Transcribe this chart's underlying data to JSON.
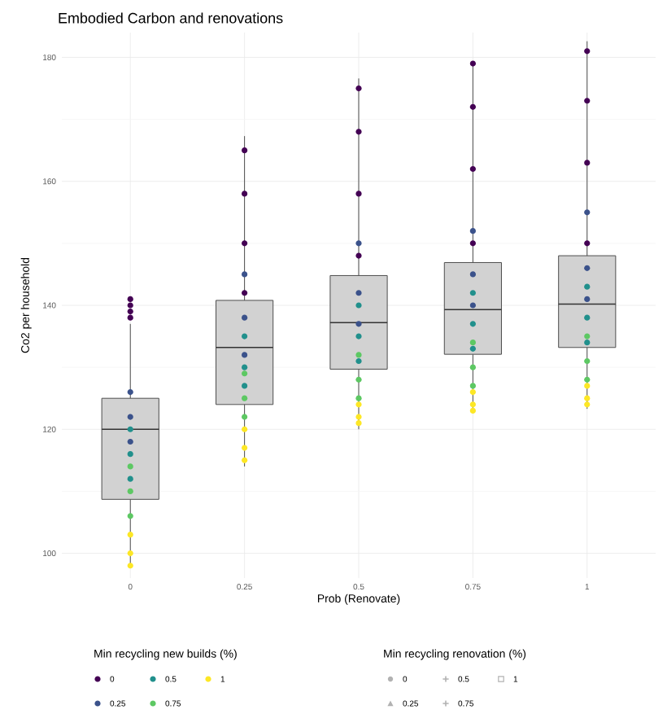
{
  "chart_data": {
    "type": "box",
    "title": "Embodied Carbon and renovations",
    "xlabel": "Prob (Renovate)",
    "ylabel": "Co2 per household",
    "categories": [
      "0",
      "0.25",
      "0.5",
      "0.75",
      "1"
    ],
    "boxes": [
      {
        "low": 98,
        "q1": 108.7,
        "median": 120,
        "q3": 125,
        "high": 137
      },
      {
        "low": 114,
        "q1": 124,
        "median": 133.2,
        "q3": 140.8,
        "high": 167.3
      },
      {
        "low": 120,
        "q1": 129.7,
        "median": 137.2,
        "q3": 144.8,
        "high": 176.6
      },
      {
        "low": 122.6,
        "q1": 132.1,
        "median": 139.3,
        "q3": 146.9,
        "high": 179.4
      },
      {
        "low": 123.3,
        "q1": 133.2,
        "median": 140.2,
        "q3": 148,
        "high": 182.6
      }
    ],
    "ylim": [
      96,
      184
    ],
    "yticks": [
      100,
      120,
      140,
      160,
      180
    ],
    "grid": true,
    "legend": "bottom",
    "legend_title": "Min recycling new builds (%)",
    "marker": "circle",
    "series": [
      {
        "type": "scatter",
        "name": "0",
        "color": "#440154",
        "x": [
          "0",
          "0",
          "0",
          "0",
          "0.25",
          "0.25",
          "0.25",
          "0.25",
          "0.5",
          "0.5",
          "0.5",
          "0.5",
          "0.75",
          "0.75",
          "0.75",
          "0.75",
          "1",
          "1",
          "1",
          "1"
        ],
        "values": [
          138,
          140,
          141,
          139,
          142,
          150,
          158,
          165,
          148,
          158,
          168,
          175,
          150,
          162,
          172,
          179,
          150,
          163,
          173,
          181
        ]
      },
      {
        "type": "scatter",
        "name": "0.25",
        "color": "#3b528b",
        "x": [
          "0",
          "0",
          "0",
          "0.25",
          "0.25",
          "0.25",
          "0.5",
          "0.5",
          "0.5",
          "0.75",
          "0.75",
          "0.75",
          "1",
          "1",
          "1"
        ],
        "values": [
          126,
          122,
          118,
          138,
          132,
          145,
          142,
          137,
          150,
          145,
          140,
          152,
          146,
          141,
          155
        ]
      },
      {
        "type": "scatter",
        "name": "0.5",
        "color": "#21908c",
        "x": [
          "0",
          "0",
          "0",
          "0.25",
          "0.25",
          "0.25",
          "0.5",
          "0.5",
          "0.5",
          "0.75",
          "0.75",
          "0.75",
          "1",
          "1",
          "1"
        ],
        "values": [
          120,
          112,
          116,
          130,
          135,
          127,
          135,
          140,
          131,
          137,
          142,
          133,
          138,
          143,
          134
        ]
      },
      {
        "type": "scatter",
        "name": "0.75",
        "color": "#5dc863",
        "x": [
          "0",
          "0",
          "0",
          "0.25",
          "0.25",
          "0.25",
          "0.5",
          "0.5",
          "0.5",
          "0.75",
          "0.75",
          "0.75",
          "1",
          "1",
          "1"
        ],
        "values": [
          110,
          106,
          114,
          125,
          122,
          129,
          128,
          125,
          132,
          130,
          127,
          134,
          131,
          128,
          135
        ]
      },
      {
        "type": "scatter",
        "name": "1",
        "color": "#fde725",
        "x": [
          "0",
          "0",
          "0",
          "0.25",
          "0.25",
          "0.25",
          "0.5",
          "0.5",
          "0.5",
          "0.75",
          "0.75",
          "0.75",
          "1",
          "1",
          "1"
        ],
        "values": [
          100,
          103,
          98,
          117,
          120,
          115,
          121,
          124,
          122,
          124,
          126,
          123,
          125,
          127,
          124
        ]
      }
    ],
    "annotations": [
      "Min recycling renovation (%)",
      "0",
      "0.25",
      "0.5",
      "0.75",
      "1"
    ]
  }
}
